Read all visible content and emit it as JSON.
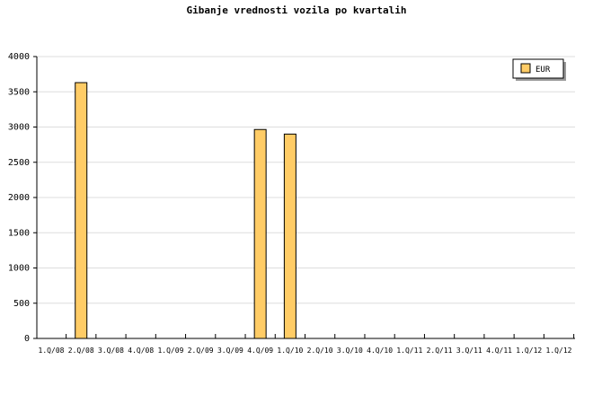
{
  "chart_data": {
    "type": "bar",
    "title": "Gibanje vrednosti vozila po kvartalih",
    "categories": [
      "1.Q/08",
      "2.Q/08",
      "3.Q/08",
      "4.Q/08",
      "1.Q/09",
      "2.Q/09",
      "3.Q/09",
      "4.Q/09",
      "1.Q/10",
      "2.Q/10",
      "3.Q/10",
      "4.Q/10",
      "1.Q/11",
      "2.Q/11",
      "3.Q/11",
      "4.Q/11",
      "1.Q/12",
      "1.Q/12"
    ],
    "series": [
      {
        "name": "EUR",
        "color": "#ffcc66",
        "values": [
          0,
          3630,
          0,
          0,
          0,
          0,
          0,
          2965,
          2900,
          0,
          0,
          0,
          0,
          0,
          0,
          0,
          0,
          0
        ]
      }
    ],
    "ylim": [
      0,
      4000
    ],
    "yticks": [
      0,
      500,
      1000,
      1500,
      2000,
      2500,
      3000,
      3500,
      4000
    ],
    "grid": true,
    "legend_position": "top-right"
  }
}
